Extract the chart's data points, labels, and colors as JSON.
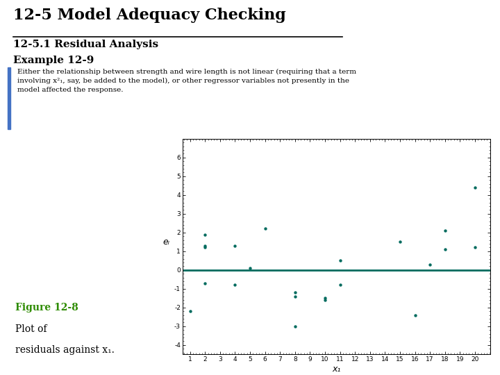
{
  "title": "12-5 Model Adequacy Checking",
  "subtitle1": "12-5.1 Residual Analysis",
  "subtitle2": "Example 12-9",
  "body_text": "Either the relationship between strength and wire length is not linear (requiring that a term\ninvolving x²₁, say, be added to the model), or other regressor variables not presently in the\nmodel affected the response.",
  "figure_label_bold": "Figure 12-8",
  "figure_label_rest": " Plot of\nresiduals against x₁.",
  "scatter_color": "#006B5E",
  "line_color": "#006B5E",
  "x_label": "x₁",
  "y_label": "eᵢ",
  "xlim": [
    0.5,
    21
  ],
  "ylim": [
    -4.5,
    7
  ],
  "yticks": [
    -4,
    -3,
    -2,
    -1,
    0,
    1,
    2,
    3,
    4,
    5,
    6
  ],
  "xticks": [
    1,
    2,
    3,
    4,
    5,
    6,
    7,
    8,
    9,
    10,
    11,
    12,
    13,
    14,
    15,
    16,
    17,
    18,
    19,
    20
  ],
  "scatter_x": [
    1,
    2,
    2,
    2,
    2,
    4,
    4,
    5,
    6,
    8,
    8,
    8,
    10,
    10,
    11,
    11,
    15,
    16,
    17,
    18,
    18,
    20,
    20
  ],
  "scatter_y": [
    -2.2,
    1.9,
    1.3,
    1.2,
    -0.7,
    1.3,
    -0.8,
    0.1,
    2.2,
    -1.2,
    -1.4,
    -3.0,
    -1.5,
    -1.6,
    0.5,
    -0.8,
    1.5,
    -2.4,
    0.3,
    2.1,
    1.1,
    1.2,
    4.4
  ],
  "background_color": "#ffffff",
  "plot_bg_color": "#ffffff",
  "blue_bar_color": "#4472C4",
  "title_fontsize": 16,
  "subtitle_fontsize": 11,
  "body_fontsize": 7.5,
  "caption_fontsize": 10,
  "tick_fontsize": 6.5
}
